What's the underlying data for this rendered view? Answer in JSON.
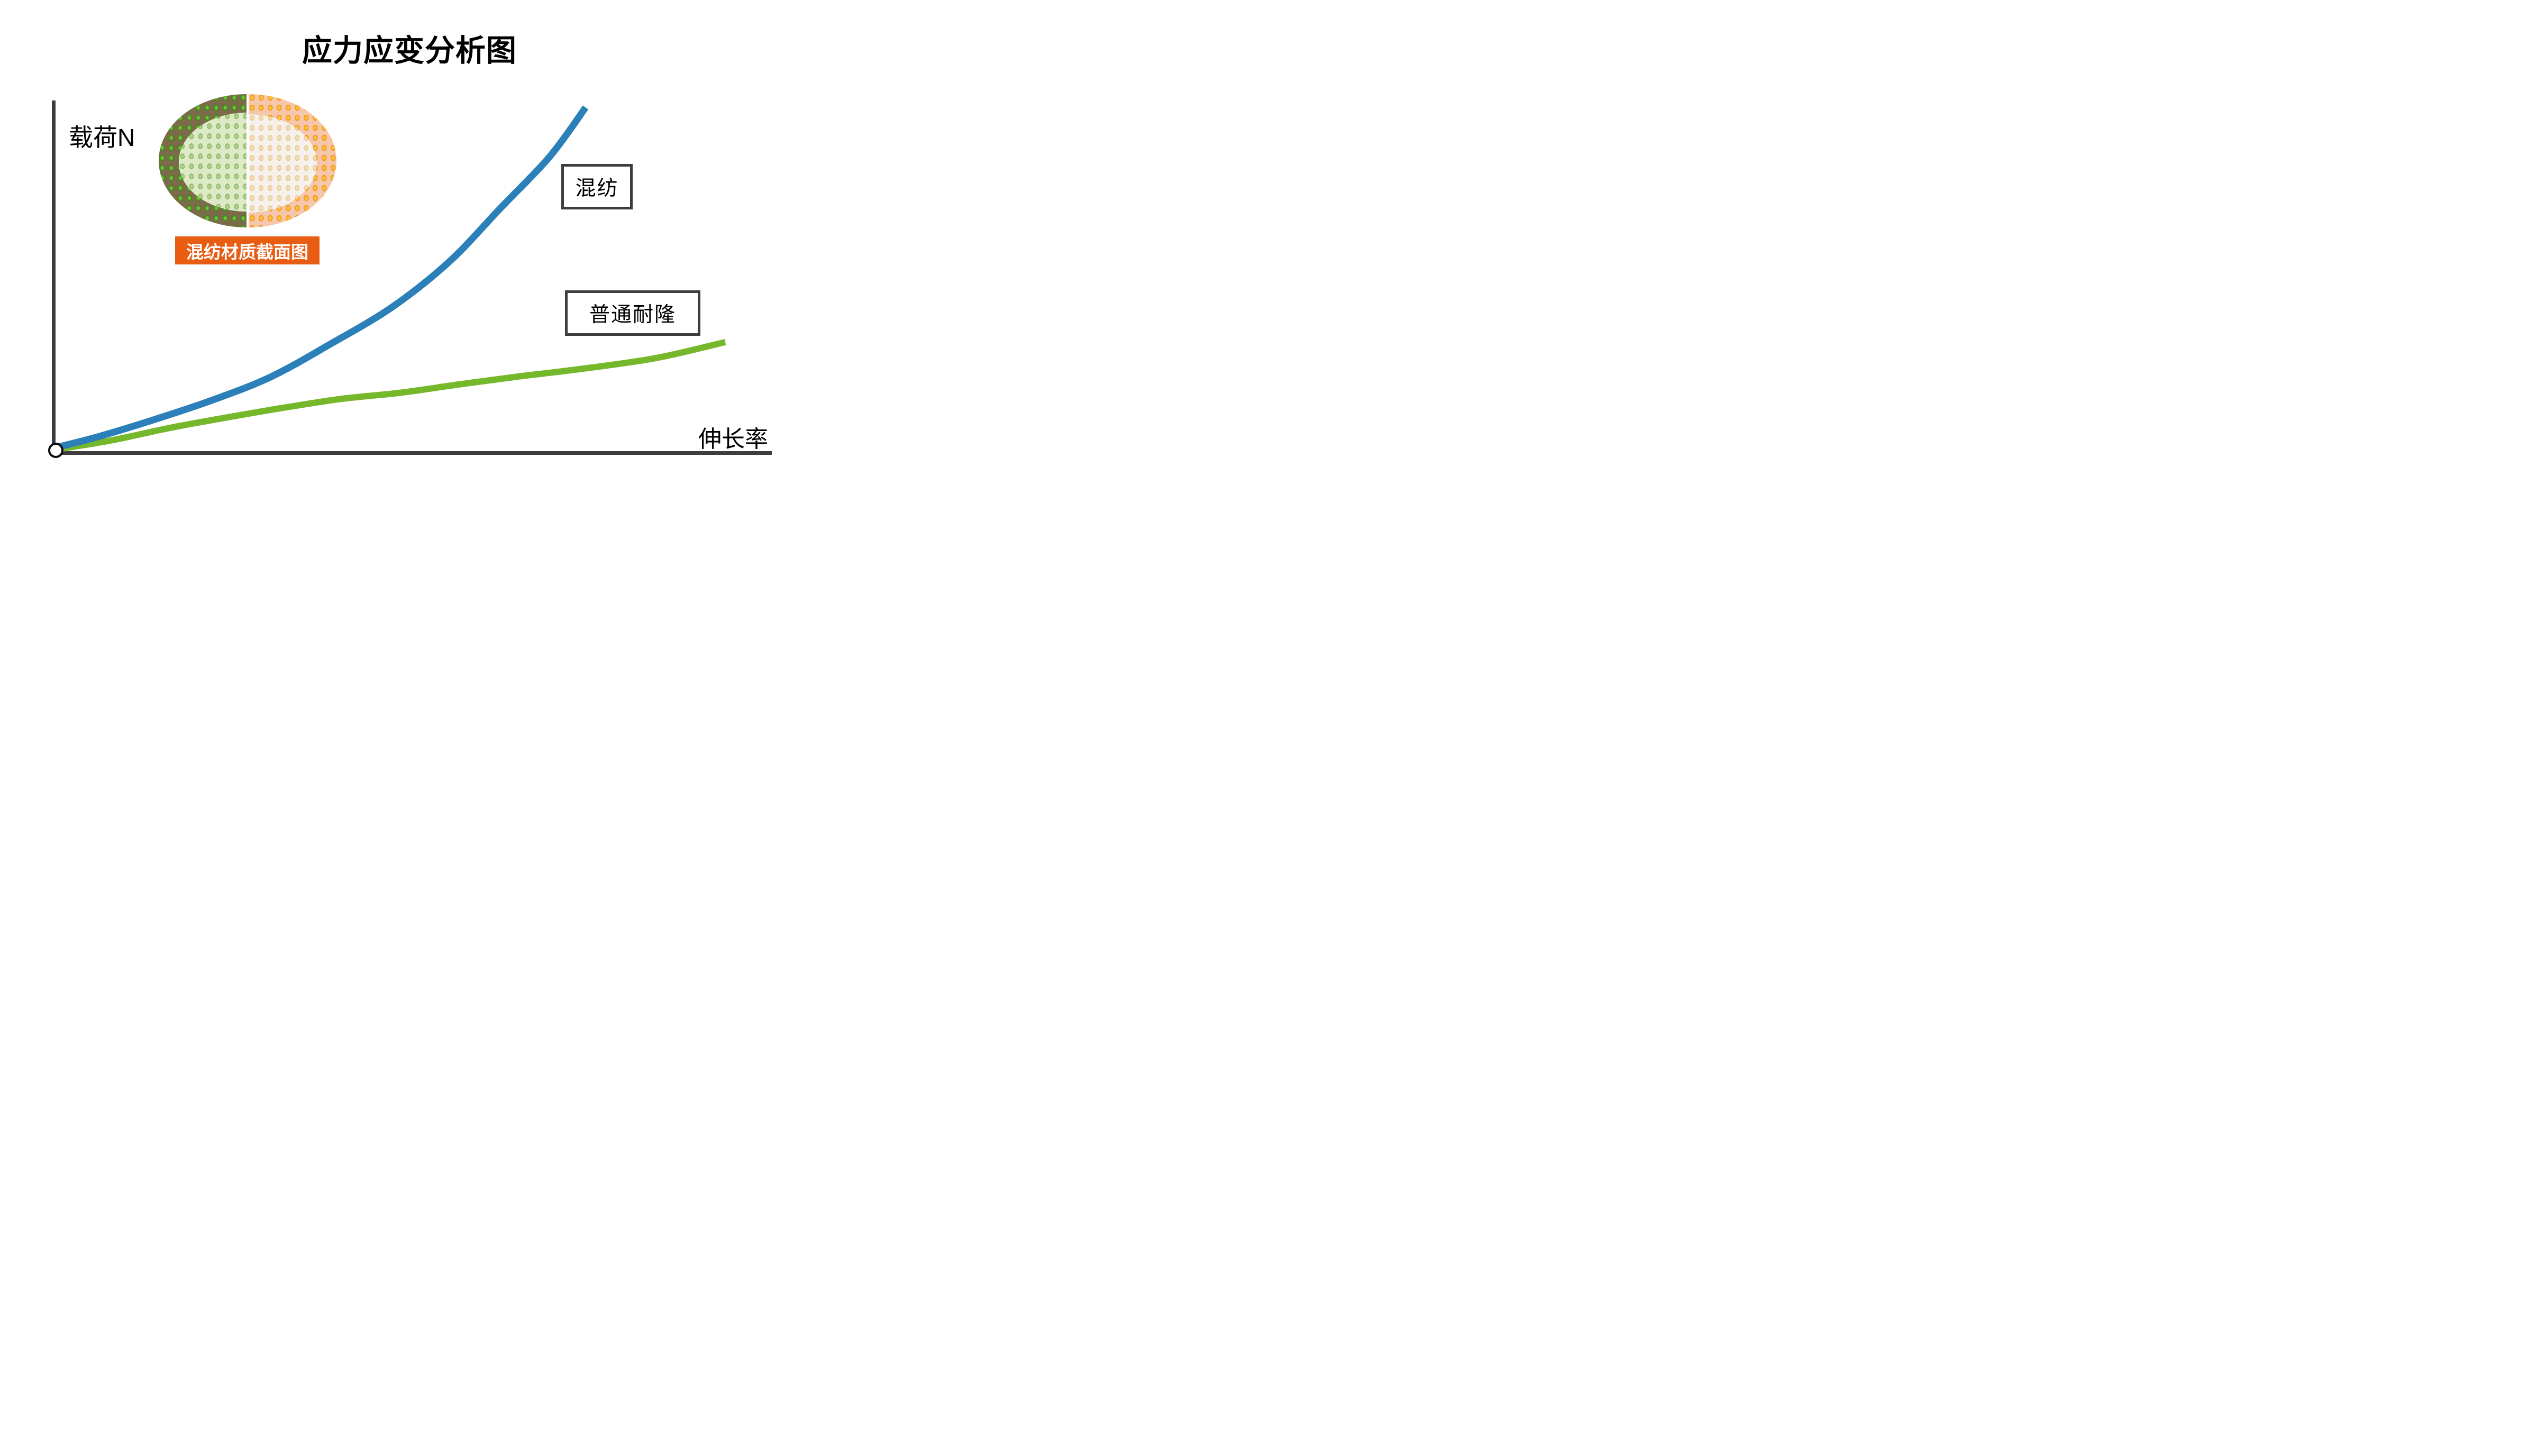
{
  "title": "应力应变分析图",
  "axes": {
    "x_label": "伸长率",
    "y_label": "载荷N"
  },
  "legend": [
    {
      "label": "混纺"
    },
    {
      "label": "普通耐隆"
    }
  ],
  "illustration": {
    "caption": "混纺材质截面图"
  },
  "colors": {
    "blend_blue": "#2b80ba",
    "nylon_green": "#76b82b",
    "axis_gray": "#3d3d3d",
    "caption_orange": "#e85d12"
  },
  "chart_data": {
    "type": "line",
    "title": "应力应变分析图",
    "xlabel": "伸长率",
    "ylabel": "载荷N",
    "xlim": [
      0,
      100
    ],
    "ylim": [
      0,
      100
    ],
    "grid": false,
    "tick_labels": "none (qualitative sketch chart)",
    "legend_position": "boxed labels next to each curve",
    "series": [
      {
        "name": "混纺",
        "color": "#2b80ba",
        "points": [
          [
            0.3,
            1
          ],
          [
            6,
            4
          ],
          [
            14,
            9
          ],
          [
            22,
            14.5
          ],
          [
            30,
            21
          ],
          [
            38,
            30
          ],
          [
            47,
            41
          ],
          [
            55,
            54
          ],
          [
            62,
            69
          ],
          [
            69,
            84
          ],
          [
            74,
            98
          ]
        ]
      },
      {
        "name": "普通耐隆",
        "color": "#76b82b",
        "points": [
          [
            0.3,
            0.4
          ],
          [
            8,
            3
          ],
          [
            16,
            6.5
          ],
          [
            24,
            9.5
          ],
          [
            32,
            12.3
          ],
          [
            40,
            14.8
          ],
          [
            48,
            16.5
          ],
          [
            56,
            18.8
          ],
          [
            64,
            21
          ],
          [
            74,
            23.5
          ],
          [
            84,
            26.5
          ],
          [
            93.5,
            31
          ]
        ]
      }
    ],
    "annotations": [
      {
        "text": "混纺材质截面图",
        "role": "caption of fiber cross-section illustration"
      }
    ]
  }
}
